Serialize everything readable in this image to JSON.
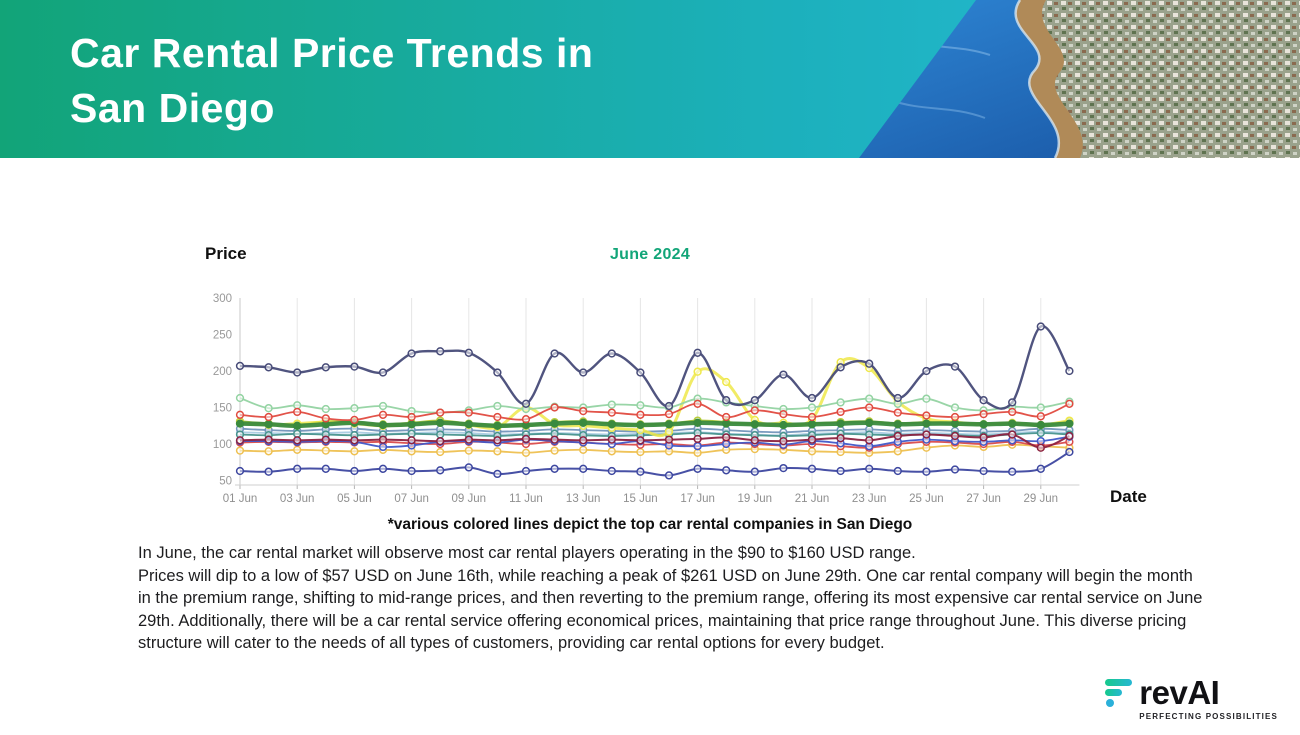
{
  "slide": {
    "title_line1": "Car Rental Price Trends in",
    "title_line2": "San Diego"
  },
  "chart": {
    "price_axis_label": "Price",
    "period_label": "June 2024",
    "date_axis_label": "Date",
    "caption": "*various colored lines depict the top car rental companies in San Diego"
  },
  "analysis": {
    "line1": "In June, the car rental market will observe most car rental players operating in the $90 to $160 USD range.",
    "body": "Prices will dip to a low of $57 USD on June 16th, while reaching a peak of $261 USD on June 29th. One car rental company will begin the month in the premium range, shifting to mid-range prices, and then reverting to the premium range, offering its most expensive car rental service on June 29th. Additionally, there will be a car rental service offering economical prices, maintaining that price range throughout June. This diverse pricing structure will cater to the needs of all types of customers, providing car rental options for every budget."
  },
  "logo": {
    "brand": "revAI",
    "tagline": "PERFECTING POSSIBILITIES"
  },
  "colors": {
    "banner_gradient_left": "#12a478",
    "banner_gradient_right": "#27bdd8",
    "accent_green": "#12a578",
    "axis_text": "#909090"
  },
  "chart_data": {
    "type": "line",
    "title": "June 2024",
    "xlabel": "Date",
    "ylabel": "Price",
    "x_days": [
      1,
      2,
      3,
      4,
      5,
      6,
      7,
      8,
      9,
      10,
      11,
      12,
      13,
      14,
      15,
      16,
      17,
      18,
      19,
      20,
      21,
      22,
      23,
      24,
      25,
      26,
      27,
      28,
      29,
      30
    ],
    "x_tick_days": [
      1,
      3,
      5,
      7,
      9,
      11,
      13,
      15,
      17,
      19,
      21,
      23,
      25,
      27,
      29
    ],
    "x_tick_labels": [
      "01 Jun",
      "03 Jun",
      "05 Jun",
      "07 Jun",
      "09 Jun",
      "11 Jun",
      "13 Jun",
      "15 Jun",
      "17 Jun",
      "19 Jun",
      "21 Jun",
      "23 Jun",
      "25 Jun",
      "27 Jun",
      "29 Jun"
    ],
    "y_ticks": [
      300,
      250,
      200,
      150,
      100,
      50
    ],
    "ylim": [
      50,
      300
    ],
    "grid": "vertical",
    "legend": "none",
    "series": [
      {
        "name": "light-blue",
        "color": "#a9cbe2",
        "w": 1.8,
        "values": [
          116,
          115,
          114,
          115,
          116,
          114,
          115,
          116,
          115,
          113,
          114,
          115,
          114,
          113,
          114,
          115,
          116,
          114,
          113,
          112,
          114,
          115,
          116,
          114,
          115,
          114,
          113,
          115,
          117,
          115
        ]
      },
      {
        "name": "steel-blue",
        "color": "#7295bb",
        "w": 1.8,
        "values": [
          121,
          119,
          118,
          120,
          121,
          118,
          119,
          120,
          119,
          117,
          118,
          120,
          119,
          118,
          117,
          118,
          121,
          119,
          117,
          116,
          118,
          119,
          120,
          118,
          119,
          118,
          117,
          118,
          121,
          119
        ]
      },
      {
        "name": "teal",
        "color": "#47948d",
        "w": 1.8,
        "values": [
          113,
          112,
          114,
          113,
          112,
          113,
          114,
          113,
          112,
          111,
          113,
          114,
          112,
          111,
          112,
          113,
          115,
          113,
          112,
          111,
          112,
          114,
          113,
          112,
          113,
          112,
          111,
          113,
          115,
          113
        ]
      },
      {
        "name": "chartreuse",
        "color": "#b7cc3a",
        "w": 2.2,
        "values": [
          131,
          128,
          126,
          131,
          130,
          127,
          129,
          132,
          128,
          126,
          125,
          130,
          131,
          128,
          127,
          128,
          132,
          130,
          127,
          126,
          128,
          130,
          131,
          128,
          130,
          129,
          127,
          128,
          126,
          131
        ]
      },
      {
        "name": "gold",
        "color": "#eec050",
        "w": 1.8,
        "values": [
          91,
          90,
          92,
          91,
          90,
          92,
          90,
          89,
          91,
          90,
          88,
          91,
          92,
          90,
          89,
          90,
          88,
          92,
          93,
          92,
          90,
          89,
          88,
          90,
          95,
          98,
          96,
          99,
          97,
          95
        ]
      },
      {
        "name": "crimson",
        "color": "#d94b4b",
        "w": 1.8,
        "values": [
          102,
          103,
          102,
          103,
          102,
          103,
          101,
          100,
          103,
          102,
          100,
          103,
          102,
          100,
          99,
          100,
          98,
          102,
          100,
          98,
          100,
          97,
          95,
          100,
          103,
          102,
          100,
          103,
          98,
          103
        ]
      },
      {
        "name": "royal-blue",
        "color": "#4059c8",
        "w": 1.8,
        "values": [
          104,
          104,
          103,
          104,
          103,
          96,
          98,
          103,
          104,
          102,
          106,
          104,
          102,
          100,
          104,
          98,
          97,
          100,
          102,
          99,
          104,
          101,
          97,
          103,
          106,
          104,
          103,
          105,
          104,
          110
        ]
      },
      {
        "name": "maroon",
        "color": "#8c2240",
        "w": 2,
        "values": [
          105,
          106,
          105,
          106,
          105,
          106,
          105,
          104,
          106,
          105,
          107,
          106,
          105,
          106,
          105,
          106,
          107,
          109,
          105,
          104,
          106,
          108,
          105,
          111,
          113,
          111,
          109,
          113,
          95,
          111
        ]
      },
      {
        "name": "yellow",
        "color": "#efe84a",
        "w": 3,
        "values": [
          129,
          126,
          128,
          130,
          128,
          125,
          127,
          129,
          126,
          123,
          150,
          127,
          125,
          122,
          119,
          117,
          199,
          185,
          133,
          129,
          134,
          212,
          204,
          158,
          135,
          130,
          127,
          129,
          126,
          132
        ]
      },
      {
        "name": "dark-green",
        "color": "#3a8a3e",
        "w": 4.5,
        "thick": true,
        "values": [
          128,
          127,
          125,
          127,
          129,
          126,
          127,
          129,
          127,
          125,
          126,
          128,
          129,
          127,
          126,
          127,
          129,
          128,
          127,
          126,
          127,
          128,
          129,
          127,
          128,
          128,
          127,
          128,
          126,
          128
        ]
      },
      {
        "name": "mint-green",
        "color": "#93d3a2",
        "w": 1.8,
        "values": [
          163,
          149,
          153,
          148,
          149,
          152,
          145,
          143,
          146,
          152,
          148,
          151,
          150,
          154,
          153,
          150,
          162,
          157,
          152,
          148,
          150,
          157,
          162,
          155,
          162,
          150,
          146,
          151,
          150,
          158
        ]
      },
      {
        "name": "red",
        "color": "#e04a3f",
        "w": 1.8,
        "values": [
          140,
          137,
          144,
          135,
          133,
          140,
          137,
          143,
          143,
          137,
          134,
          150,
          145,
          143,
          140,
          141,
          155,
          137,
          146,
          141,
          137,
          144,
          150,
          143,
          139,
          137,
          141,
          144,
          138,
          155
        ]
      },
      {
        "name": "dark-blue",
        "color": "#3d47a0",
        "w": 2,
        "values": [
          63,
          62,
          66,
          66,
          63,
          66,
          63,
          64,
          68,
          59,
          63,
          66,
          66,
          63,
          62,
          57,
          66,
          64,
          62,
          67,
          66,
          63,
          66,
          63,
          62,
          65,
          63,
          62,
          66,
          89
        ]
      },
      {
        "name": "navy",
        "color": "#474b78",
        "w": 2.4,
        "values": [
          207,
          205,
          198,
          205,
          206,
          198,
          224,
          227,
          225,
          198,
          155,
          224,
          198,
          224,
          198,
          152,
          225,
          160,
          160,
          195,
          163,
          205,
          210,
          163,
          200,
          206,
          160,
          157,
          261,
          200
        ]
      }
    ]
  }
}
